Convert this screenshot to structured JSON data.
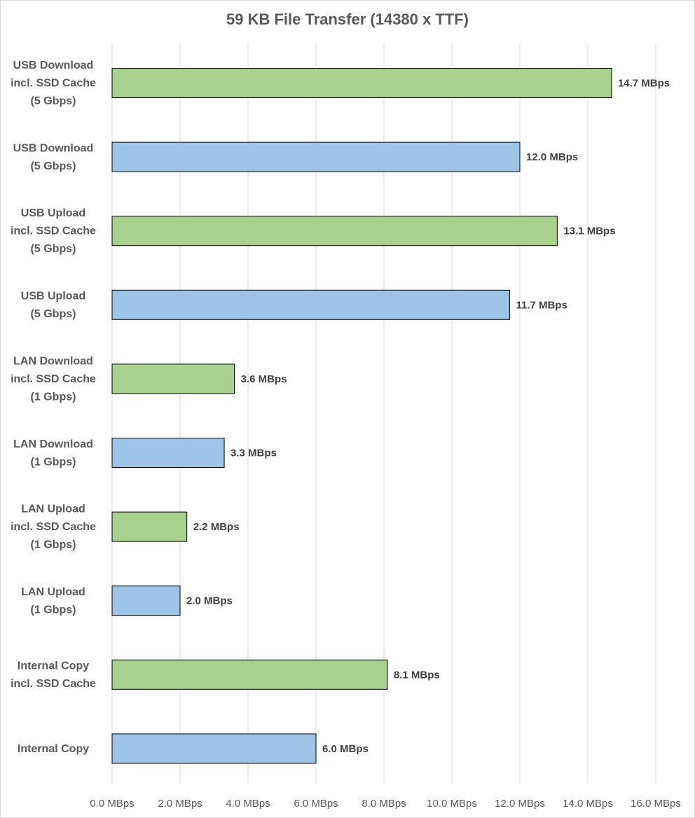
{
  "chart_data": {
    "type": "bar",
    "orientation": "horizontal",
    "title": "59 KB File Transfer (14380 x TTF)",
    "xlabel": "",
    "ylabel": "",
    "xlim": [
      0,
      16
    ],
    "x_ticks": [
      0,
      2,
      4,
      6,
      8,
      10,
      12,
      14,
      16
    ],
    "x_tick_labels": [
      "0.0 MBps",
      "2.0 MBps",
      "4.0 MBps",
      "6.0 MBps",
      "8.0 MBps",
      "10.0 MBps",
      "12.0 MBps",
      "14.0 MBps",
      "16.0 MBps"
    ],
    "grid": "vertical",
    "legend": "none",
    "categories": [
      [
        "USB Download",
        "incl. SSD Cache",
        "(5 Gbps)"
      ],
      [
        "USB Download",
        "(5 Gbps)"
      ],
      [
        "USB Upload",
        "incl. SSD Cache",
        "(5 Gbps)"
      ],
      [
        "USB Upload",
        "(5 Gbps)"
      ],
      [
        "LAN Download",
        "incl. SSD Cache",
        "(1 Gbps)"
      ],
      [
        "LAN Download",
        "(1 Gbps)"
      ],
      [
        "LAN Upload",
        "incl. SSD Cache",
        "(1 Gbps)"
      ],
      [
        "LAN Upload",
        "(1 Gbps)"
      ],
      [
        "Internal Copy",
        "incl. SSD Cache"
      ],
      [
        "Internal Copy"
      ]
    ],
    "values": [
      14.7,
      12.0,
      13.1,
      11.7,
      3.6,
      3.3,
      2.2,
      2.0,
      8.1,
      6.0
    ],
    "data_labels": [
      "14.7 MBps",
      "12.0 MBps",
      "13.1 MBps",
      "11.7 MBps",
      "3.6 MBps",
      "3.3 MBps",
      "2.2 MBps",
      "2.0 MBps",
      "8.1 MBps",
      "6.0 MBps"
    ],
    "bar_colors": [
      "#a9d18e",
      "#9dc3e6",
      "#a9d18e",
      "#9dc3e6",
      "#a9d18e",
      "#9dc3e6",
      "#a9d18e",
      "#9dc3e6",
      "#a9d18e",
      "#9dc3e6"
    ],
    "bar_outline_color": "#000000",
    "gridline_color": "#d9d9d9"
  }
}
